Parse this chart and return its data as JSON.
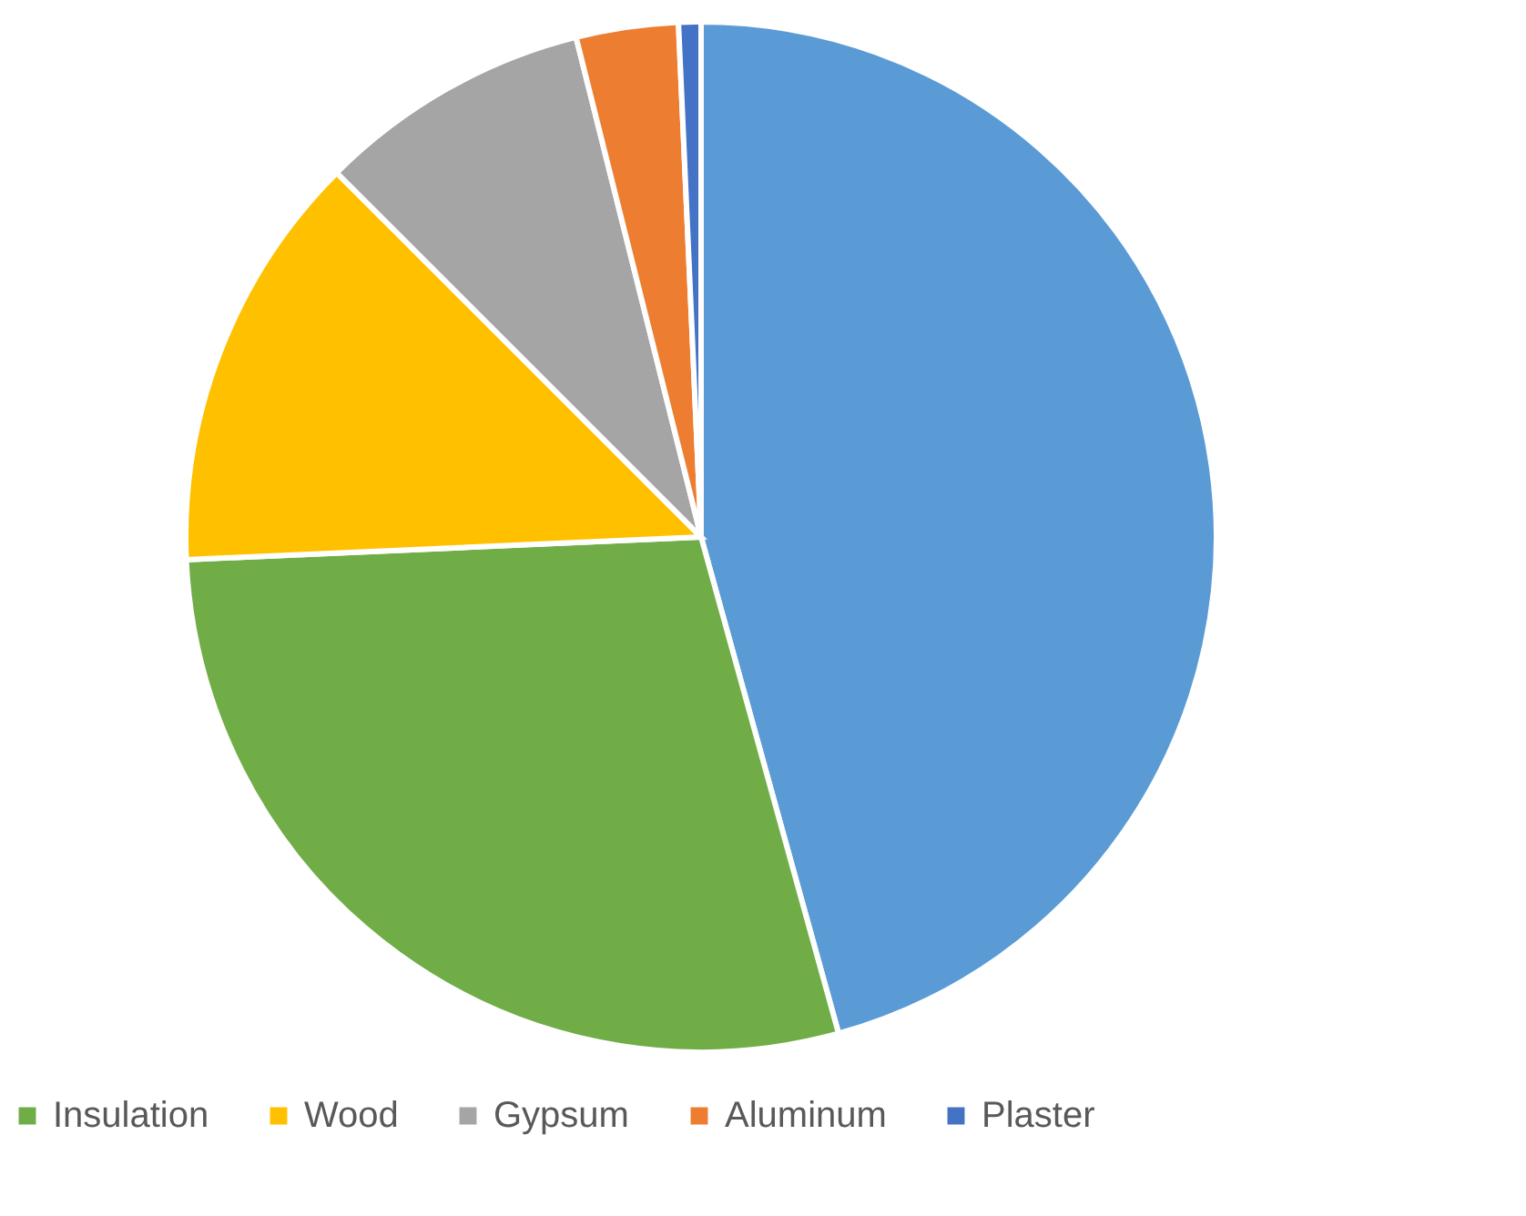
{
  "chart_data": {
    "type": "pie",
    "categories": [
      null,
      "Insulation",
      "Wood",
      "Gypsum",
      "Aluminum",
      "Plaster"
    ],
    "values": [
      45.7,
      28.6,
      13.2,
      8.6,
      3.2,
      0.7
    ],
    "colors": [
      "#5b9bd5",
      "#70ad47",
      "#ffc000",
      "#a5a5a5",
      "#ed7d31",
      "#4472c4"
    ],
    "legend": "bottom"
  }
}
